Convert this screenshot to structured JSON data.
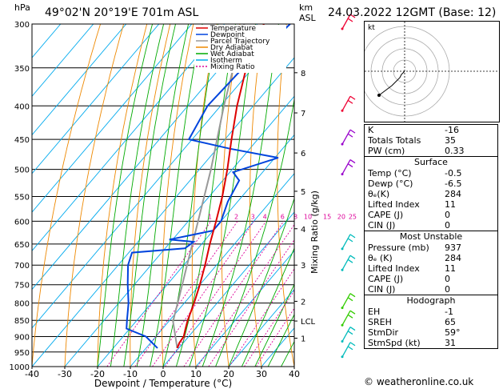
{
  "header": {
    "location": "49°02'N  20°19'E  701m  ASL",
    "datetime": "24.03.2022  12GMT  (Base: 12)",
    "p_unit": "hPa",
    "km_unit_top": "km",
    "km_unit_bottom": "ASL"
  },
  "chart_data": {
    "type": "skew-t",
    "title": "Skew-T log-P diagram",
    "xlabel": "Dewpoint / Temperature (°C)",
    "ylabel_right": "Mixing Ratio (g/kg)",
    "x_ticks": [
      -40,
      -30,
      -20,
      -10,
      0,
      10,
      20,
      30,
      40
    ],
    "pressure_levels": [
      300,
      350,
      400,
      450,
      500,
      550,
      600,
      650,
      700,
      750,
      800,
      850,
      900,
      950,
      1000
    ],
    "height_ticks": [
      {
        "label": "8",
        "p": 356
      },
      {
        "label": "7",
        "p": 410
      },
      {
        "label": "6",
        "p": 472
      },
      {
        "label": "5",
        "p": 540
      },
      {
        "label": "4",
        "p": 616
      },
      {
        "label": "3",
        "p": 700
      },
      {
        "label": "2",
        "p": 795
      },
      {
        "label": "LCL",
        "p": 852
      },
      {
        "label": "1",
        "p": 905
      }
    ],
    "mixing_ratio_labels": [
      "1",
      "2",
      "3",
      "4",
      "6",
      "8",
      "10",
      "15",
      "20",
      "25"
    ],
    "mixing_ratios": [
      1,
      2,
      3,
      4,
      6,
      8,
      10,
      15,
      20,
      25
    ],
    "legend": [
      {
        "name": "Temperature",
        "color": "#dd0000"
      },
      {
        "name": "Dewpoint",
        "color": "#0044dd"
      },
      {
        "name": "Parcel Trajectory",
        "color": "#999999"
      },
      {
        "name": "Dry Adiabat",
        "color": "#ee8800"
      },
      {
        "name": "Wet Adiabat",
        "color": "#00aa00"
      },
      {
        "name": "Isotherm",
        "color": "#00aaee"
      },
      {
        "name": "Mixing Ratio",
        "color": "#dd0099"
      }
    ],
    "temperature": [
      [
        937,
        -0.5
      ],
      [
        920,
        -1.2
      ],
      [
        900,
        -1.5
      ],
      [
        875,
        -3
      ],
      [
        850,
        -4.5
      ],
      [
        800,
        -7
      ],
      [
        750,
        -10
      ],
      [
        700,
        -13.5
      ],
      [
        650,
        -17.5
      ],
      [
        600,
        -21.5
      ],
      [
        550,
        -26
      ],
      [
        500,
        -31.5
      ],
      [
        450,
        -38
      ],
      [
        400,
        -45
      ],
      [
        350,
        -52
      ],
      [
        300,
        -58
      ]
    ],
    "dewpoint": [
      [
        937,
        -6.5
      ],
      [
        900,
        -13
      ],
      [
        875,
        -21
      ],
      [
        850,
        -23
      ],
      [
        800,
        -27
      ],
      [
        750,
        -32
      ],
      [
        700,
        -37
      ],
      [
        670,
        -39
      ],
      [
        660,
        -24
      ],
      [
        645,
        -23
      ],
      [
        640,
        -31
      ],
      [
        620,
        -20
      ],
      [
        600,
        -20
      ],
      [
        560,
        -23
      ],
      [
        520,
        -25
      ],
      [
        505,
        -29
      ],
      [
        480,
        -19
      ],
      [
        465,
        -36
      ],
      [
        450,
        -51
      ],
      [
        400,
        -54
      ],
      [
        350,
        -53
      ],
      [
        300,
        -50
      ]
    ],
    "parcel": [
      [
        937,
        -0.5
      ],
      [
        852,
        -8.8
      ],
      [
        800,
        -12
      ],
      [
        700,
        -19
      ],
      [
        600,
        -27
      ],
      [
        500,
        -36.5
      ],
      [
        400,
        -49
      ],
      [
        300,
        -64
      ]
    ],
    "wind_barbs": [
      {
        "p": 950,
        "color": "#00bbbb"
      },
      {
        "p": 900,
        "color": "#00bbbb"
      },
      {
        "p": 850,
        "color": "#33cc00"
      },
      {
        "p": 800,
        "color": "#33cc00"
      },
      {
        "p": 700,
        "color": "#00bbbb"
      },
      {
        "p": 650,
        "color": "#00bbbb"
      },
      {
        "p": 500,
        "color": "#9900cc"
      },
      {
        "p": 450,
        "color": "#9900cc"
      },
      {
        "p": 400,
        "color": "#ee0033"
      },
      {
        "p": 300,
        "color": "#ee0033"
      }
    ],
    "hodograph": {
      "label": "kt",
      "rings": 4
    }
  },
  "indices": [
    {
      "label": "K",
      "value": "-16"
    },
    {
      "label": "Totals Totals",
      "value": "35"
    },
    {
      "label": "PW (cm)",
      "value": "0.33"
    }
  ],
  "surface": {
    "title": "Surface",
    "rows": [
      {
        "label": "Temp (°C)",
        "value": "-0.5"
      },
      {
        "label": "Dewp (°C)",
        "value": "-6.5"
      },
      {
        "label": "θₑ(K)",
        "value": "284"
      },
      {
        "label": "Lifted Index",
        "value": "11"
      },
      {
        "label": "CAPE (J)",
        "value": "0"
      },
      {
        "label": "CIN (J)",
        "value": "0"
      }
    ]
  },
  "unstable": {
    "title": "Most Unstable",
    "rows": [
      {
        "label": "Pressure (mb)",
        "value": "937"
      },
      {
        "label": "θₑ (K)",
        "value": "284"
      },
      {
        "label": "Lifted Index",
        "value": "11"
      },
      {
        "label": "CAPE (J)",
        "value": "0"
      },
      {
        "label": "CIN (J)",
        "value": "0"
      }
    ]
  },
  "hodograph_table": {
    "title": "Hodograph",
    "rows": [
      {
        "label": "EH",
        "value": "-1"
      },
      {
        "label": "SREH",
        "value": "65"
      },
      {
        "label": "StmDir",
        "value": "59°"
      },
      {
        "label": "StmSpd (kt)",
        "value": "31"
      }
    ]
  },
  "footer": "© weatheronline.co.uk"
}
